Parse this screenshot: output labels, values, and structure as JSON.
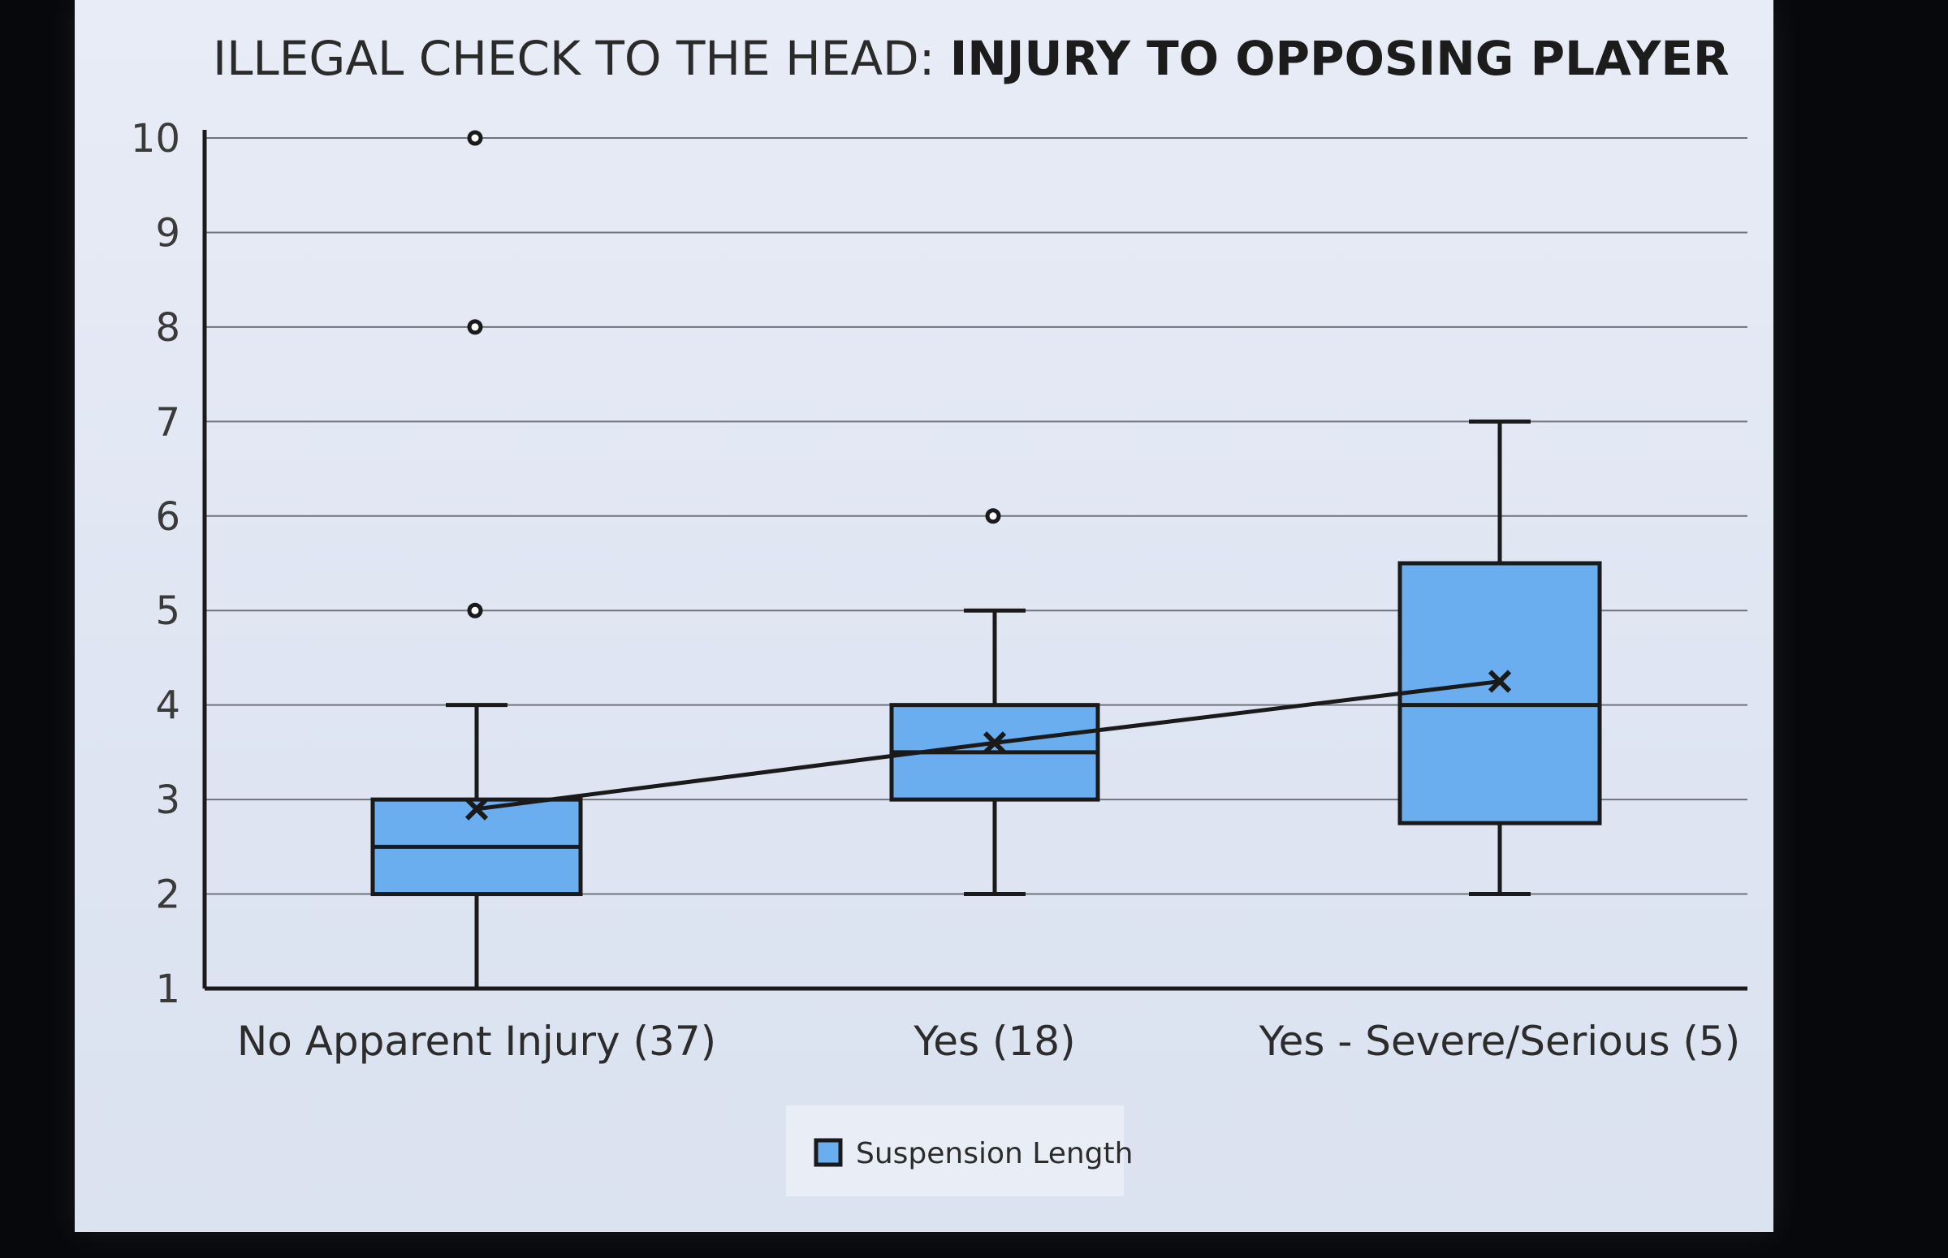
{
  "chart_data": {
    "type": "box",
    "title_prefix": "ILLEGAL CHECK TO THE HEAD: ",
    "title_emphasis": "INJURY TO OPPOSING PLAYER",
    "ylim": [
      1,
      10
    ],
    "yticks": [
      "1",
      "2",
      "3",
      "4",
      "5",
      "6",
      "7",
      "8",
      "9",
      "10"
    ],
    "grid": true,
    "legend": {
      "position": "bottom-center",
      "label": "Suspension Length"
    },
    "colors": {
      "box_fill": "#6aaef0",
      "stroke": "#1a1a1a",
      "grid": "#6f747c"
    },
    "categories": [
      "No Apparent Injury (37)",
      "Yes (18)",
      "Yes - Severe/Serious (5)"
    ],
    "series": [
      {
        "name": "Suspension Length",
        "boxes": [
          {
            "min": 1,
            "q1": 2,
            "median": 2.5,
            "q3": 3,
            "max": 4,
            "mean": 2.9,
            "outliers": [
              5,
              8,
              10
            ]
          },
          {
            "min": 2,
            "q1": 3,
            "median": 3.5,
            "q3": 4,
            "max": 5,
            "mean": 3.6,
            "outliers": [
              6
            ]
          },
          {
            "min": 2,
            "q1": 2.75,
            "median": 4,
            "q3": 5.5,
            "max": 7,
            "mean": 4.25,
            "outliers": []
          }
        ]
      }
    ]
  }
}
